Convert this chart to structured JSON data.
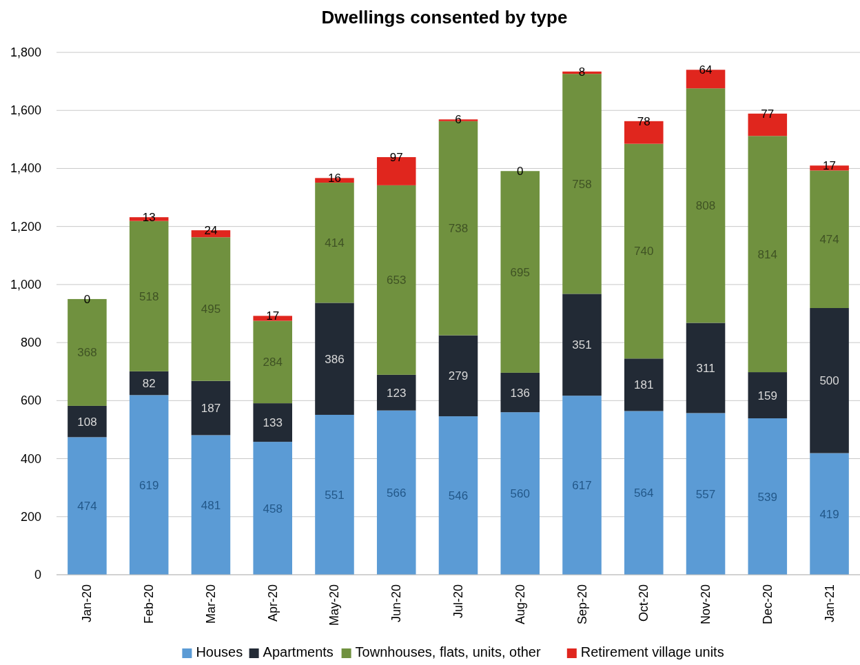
{
  "chart_data": {
    "type": "bar",
    "title": "Dwellings consented by type",
    "stacked": true,
    "data_labels": true,
    "grid": "y",
    "legend": "bottom",
    "categories": [
      "Jan-20",
      "Feb-20",
      "Mar-20",
      "Apr-20",
      "May-20",
      "Jun-20",
      "Jul-20",
      "Aug-20",
      "Sep-20",
      "Oct-20",
      "Nov-20",
      "Dec-20",
      "Jan-21"
    ],
    "ylim": [
      0,
      1800
    ],
    "yticks": [
      0,
      {
        "value": 200,
        "label": "200"
      },
      {
        "value": 400,
        "label": "400"
      },
      {
        "value": 600,
        "label": "600"
      },
      {
        "value": 800,
        "label": "800"
      },
      {
        "value": 1000,
        "label": "1,000"
      },
      {
        "value": 1200,
        "label": "1,200"
      },
      {
        "value": 1400,
        "label": "1,400"
      },
      {
        "value": 1600,
        "label": "1,600"
      },
      {
        "value": 1800,
        "label": "1,800"
      }
    ],
    "series": [
      {
        "name": "Houses",
        "color": "#5b9bd5",
        "values": [
          474,
          619,
          481,
          458,
          551,
          566,
          546,
          560,
          617,
          564,
          557,
          539,
          419
        ]
      },
      {
        "name": "Apartments",
        "color": "#222a35",
        "values": [
          108,
          82,
          187,
          133,
          386,
          123,
          279,
          136,
          351,
          181,
          311,
          159,
          500
        ]
      },
      {
        "name": "Townhouses, flats, units, other",
        "color": "#70913f",
        "values": [
          368,
          518,
          495,
          284,
          414,
          653,
          738,
          695,
          758,
          740,
          808,
          814,
          474
        ]
      },
      {
        "name": "Retirement village units",
        "color": "#e0261e",
        "values": [
          0,
          13,
          24,
          17,
          16,
          97,
          6,
          0,
          8,
          78,
          64,
          77,
          17
        ]
      }
    ]
  }
}
